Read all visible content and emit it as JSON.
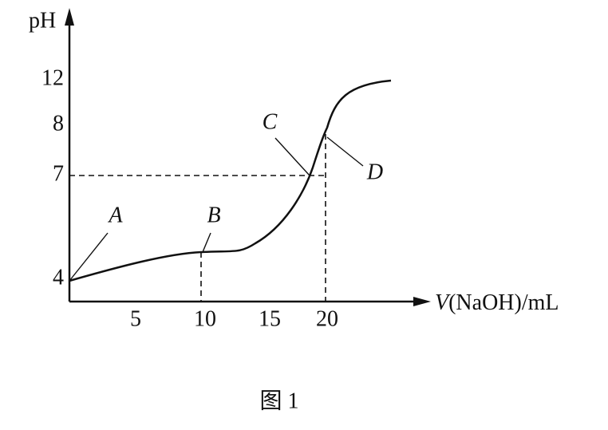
{
  "axes": {
    "y_label": "pH",
    "x_label_var": "V",
    "x_label_rest": "(NaOH)/mL",
    "y_ticks": [
      12,
      8,
      7,
      4
    ],
    "x_ticks": [
      5,
      10,
      15,
      20
    ]
  },
  "points": [
    "A",
    "B",
    "C",
    "D"
  ],
  "caption": "图 1"
}
